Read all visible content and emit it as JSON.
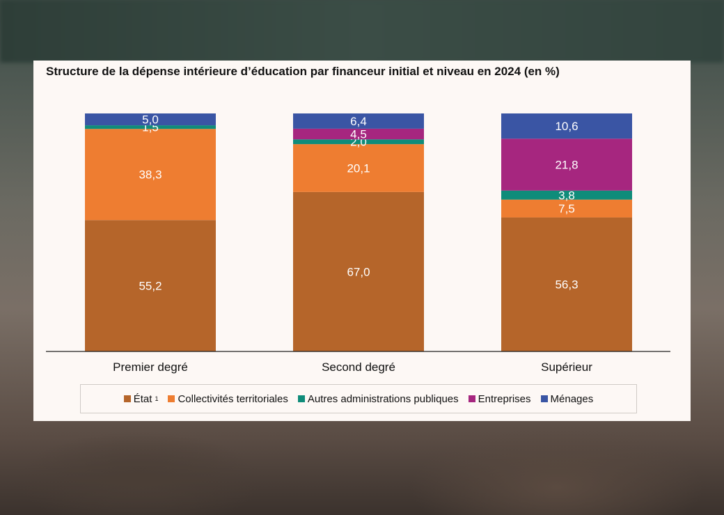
{
  "chart_data": {
    "type": "bar",
    "stacked": true,
    "title": "Structure de la dépense intérieure d’éducation par financeur initial et niveau en 2024 (en %)",
    "categories": [
      "Premier degré",
      "Second degré",
      "Supérieur"
    ],
    "ylim": [
      0,
      100
    ],
    "grid": false,
    "legend_position": "bottom",
    "series": [
      {
        "name": "État",
        "footnote": "1",
        "color": "#b5652a",
        "values": [
          55.2,
          67.0,
          56.3
        ],
        "labels": [
          "55,2",
          "67,0",
          "56,3"
        ]
      },
      {
        "name": "Collectivités territoriales",
        "color": "#ee7d31",
        "values": [
          38.3,
          20.1,
          7.5
        ],
        "labels": [
          "38,3",
          "20,1",
          "7,5"
        ]
      },
      {
        "name": "Autres administrations publiques",
        "color": "#0f8c7a",
        "values": [
          1.5,
          2.0,
          3.8
        ],
        "labels": [
          "1,5",
          "2,0",
          "3,8"
        ]
      },
      {
        "name": "Entreprises",
        "color": "#a6267f",
        "values": [
          0,
          4.5,
          21.8
        ],
        "labels": [
          "",
          "4,5",
          "21,8"
        ]
      },
      {
        "name": "Ménages",
        "color": "#3a55a4",
        "values": [
          5.0,
          6.4,
          10.6
        ],
        "labels": [
          "5,0",
          "6,4",
          "10,6"
        ]
      }
    ]
  }
}
